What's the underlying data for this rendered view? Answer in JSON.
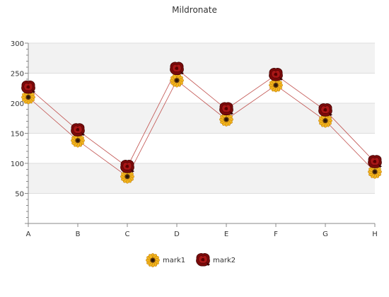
{
  "chart_data": {
    "type": "line",
    "title": "Mildronate",
    "xlabel": "",
    "ylabel": "",
    "categories": [
      "A",
      "B",
      "C",
      "D",
      "E",
      "F",
      "G",
      "H"
    ],
    "ylim": [
      0,
      300
    ],
    "yticks": [
      50,
      100,
      150,
      200,
      250,
      300
    ],
    "grid": "horizontal bands",
    "legend": "bottom-center",
    "series": [
      {
        "name": "mark1",
        "values": [
          210,
          138,
          78,
          238,
          173,
          230,
          171,
          86
        ],
        "color": "#c0504d",
        "marker": "sunflower-icon"
      },
      {
        "name": "mark2",
        "values": [
          226,
          155,
          94,
          257,
          190,
          247,
          188,
          102
        ],
        "color": "#c0504d",
        "marker": "rose-icon"
      }
    ],
    "colors": {
      "band": "#f2f2f2",
      "grid": "#dddddd",
      "axis": "#888888",
      "line": "#c0504d"
    }
  }
}
